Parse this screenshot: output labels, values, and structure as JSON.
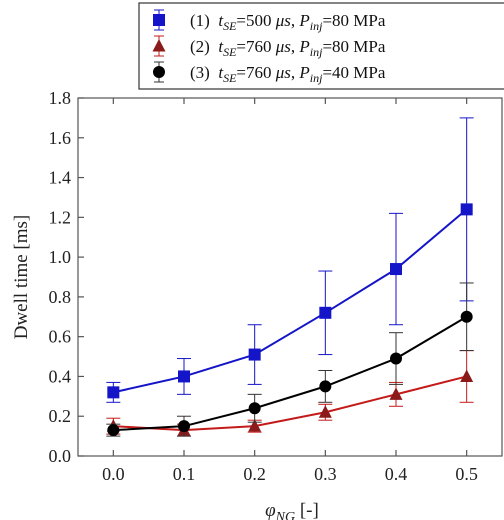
{
  "chart_data": {
    "type": "line",
    "title": "",
    "xlabel": "φ_NG [-]",
    "ylabel": "Dwell time [ms]",
    "xlim": [
      -0.05,
      0.55
    ],
    "ylim": [
      0.0,
      1.8
    ],
    "xticks": [
      0.0,
      0.1,
      0.2,
      0.3,
      0.4,
      0.5
    ],
    "xtick_labels": [
      "0.0",
      "0.1",
      "0.2",
      "0.3",
      "0.4",
      "0.5"
    ],
    "yticks": [
      0.0,
      0.2,
      0.4,
      0.6,
      0.8,
      1.0,
      1.2,
      1.4,
      1.6,
      1.8
    ],
    "ytick_labels": [
      "0.0",
      "0.2",
      "0.4",
      "0.6",
      "0.8",
      "1.0",
      "1.2",
      "1.4",
      "1.6",
      "1.8"
    ],
    "grid": false,
    "legend_position": "top-right",
    "x": [
      0.0,
      0.1,
      0.2,
      0.3,
      0.4,
      0.5
    ],
    "series": [
      {
        "name": "(1) t_SE=500 μs, P_inj=80 MPa",
        "legend": {
          "num": "(1)",
          "t": "t",
          "t_sub": "SE",
          "t_val": "=500 ",
          "t_unit": "μs",
          "sep": ", ",
          "p": "P",
          "p_sub": "inj",
          "p_val": "=80 MPa"
        },
        "marker": "square",
        "color": "#1414c8",
        "values": [
          0.32,
          0.4,
          0.51,
          0.72,
          0.94,
          1.24
        ],
        "error": [
          0.05,
          0.09,
          0.15,
          0.21,
          0.28,
          0.46
        ]
      },
      {
        "name": "(2) t_SE=760 μs, P_inj=80 MPa",
        "legend": {
          "num": "(2)",
          "t": "t",
          "t_sub": "SE",
          "t_val": "=760 ",
          "t_unit": "μs",
          "sep": ", ",
          "p": "P",
          "p_sub": "inj",
          "p_val": "=80 MPa"
        },
        "marker": "triangle",
        "color": "#c41a1a",
        "marker_color": "#8b1a1a",
        "values": [
          0.15,
          0.13,
          0.15,
          0.22,
          0.31,
          0.4
        ],
        "error": [
          0.04,
          0.03,
          0.03,
          0.04,
          0.06,
          0.13
        ]
      },
      {
        "name": "(3) t_SE=760 μs, P_inj=40 MPa",
        "legend": {
          "num": "(3)",
          "t": "t",
          "t_sub": "SE",
          "t_val": "=760 ",
          "t_unit": "μs",
          "sep": ", ",
          "p": "P",
          "p_sub": "inj",
          "p_val": "=40 MPa"
        },
        "marker": "circle",
        "color": "#000000",
        "values": [
          0.13,
          0.15,
          0.24,
          0.35,
          0.49,
          0.7
        ],
        "error": [
          0.03,
          0.05,
          0.07,
          0.08,
          0.13,
          0.17
        ]
      }
    ]
  }
}
